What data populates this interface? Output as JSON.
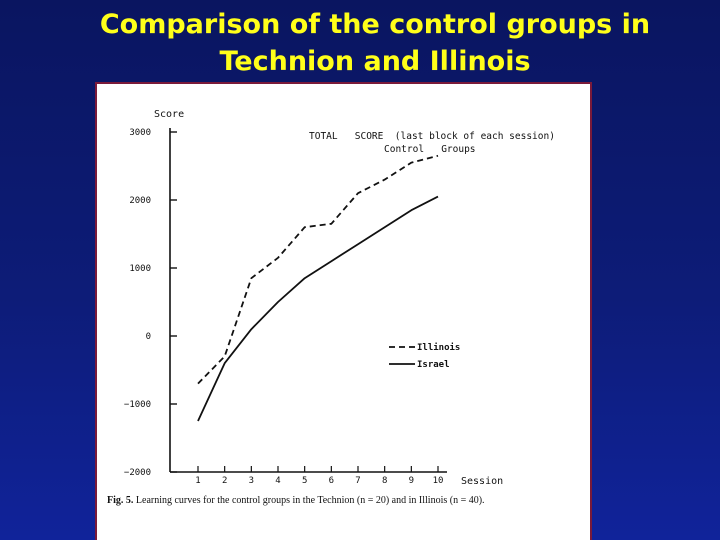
{
  "slide": {
    "title_line1": "Comparison of the control groups in",
    "title_line2": "Technion and Illinois"
  },
  "chart_data": {
    "type": "line",
    "title_line1": "TOTAL   SCORE  (last block of each session)",
    "title_line2": "Control   Groups",
    "ylabel": "Score",
    "xlabel": "Session",
    "ylim": [
      -2000,
      3000
    ],
    "yticks": [
      -2000,
      -1000,
      0,
      1000,
      2000,
      3000
    ],
    "ytick_labels": [
      "−2000",
      "−1000",
      "0",
      "1000",
      "2000",
      "3000"
    ],
    "x": [
      1,
      2,
      3,
      4,
      5,
      6,
      7,
      8,
      9,
      10
    ],
    "xtick_labels": [
      "1",
      "2",
      "3",
      "4",
      "5",
      "6",
      "7",
      "8",
      "9",
      "10"
    ],
    "series": [
      {
        "name": "Illinois",
        "style": "dashed",
        "color": "#111111",
        "values": [
          -700,
          -300,
          850,
          1150,
          1600,
          1650,
          2100,
          2300,
          2550,
          2650
        ]
      },
      {
        "name": "Israel",
        "style": "solid",
        "color": "#111111",
        "values": [
          -1250,
          -400,
          100,
          500,
          850,
          1100,
          1350,
          1600,
          1850,
          2050
        ]
      }
    ],
    "legend_position": "right-middle",
    "grid": false,
    "caption": {
      "label": "Fig. 5.",
      "text": "Learning curves for the control groups in the Technion (n = 20) and in Illinois (n = 40)."
    }
  }
}
